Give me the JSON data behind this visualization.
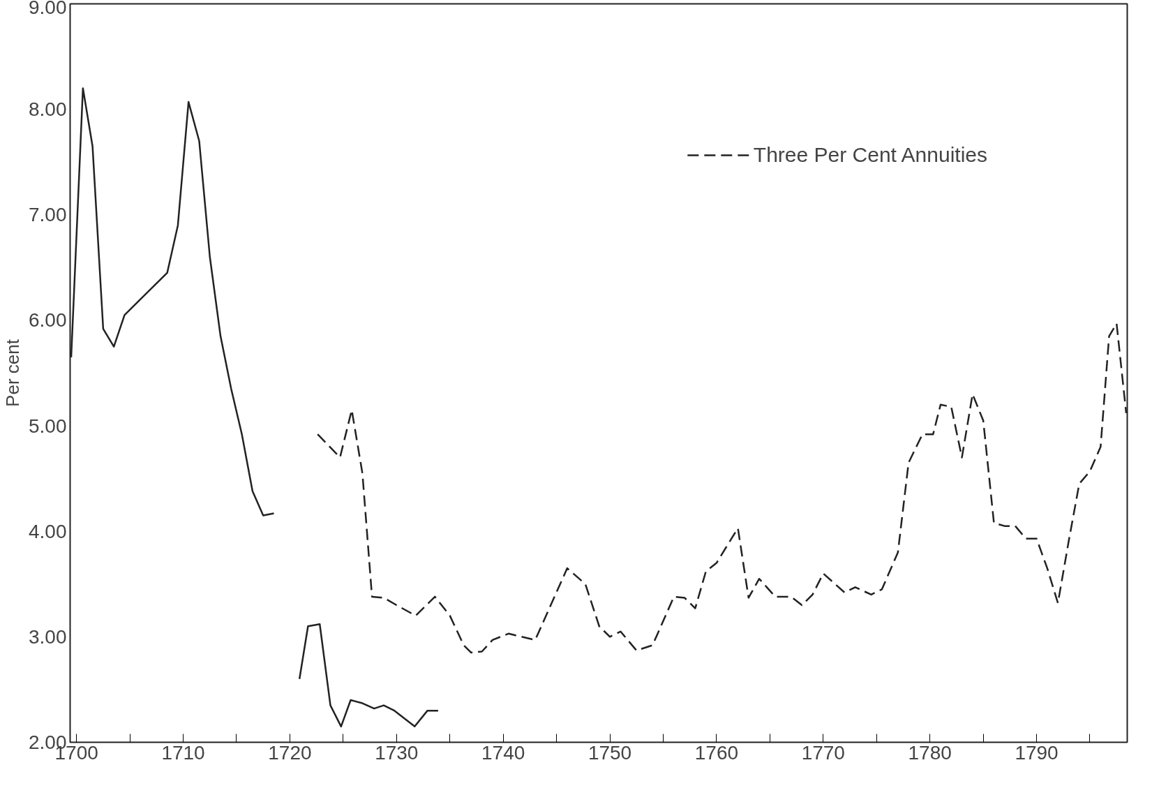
{
  "chart_data": {
    "type": "line",
    "ylabel": "Per cent",
    "xlim": [
      1699.4,
      1798.5
    ],
    "ylim": [
      2,
      9
    ],
    "xticks": [
      1700,
      {
        "value": 1705,
        "label": null
      },
      1710,
      {
        "value": 1715,
        "label": null
      },
      1720,
      {
        "value": 1725,
        "label": null
      },
      1730,
      {
        "value": 1735,
        "label": null
      },
      1740,
      {
        "value": 1745,
        "label": null
      },
      1750,
      {
        "value": 1755,
        "label": null
      },
      1760,
      {
        "value": 1765,
        "label": null
      },
      1770,
      {
        "value": 1775,
        "label": null
      },
      1780,
      {
        "value": 1785,
        "label": null
      },
      1790,
      {
        "value": 1795,
        "label": null
      }
    ],
    "yticks": [
      {
        "value": 2,
        "label": "2.00"
      },
      {
        "value": 3,
        "label": "3.00"
      },
      {
        "value": 4,
        "label": "4.00"
      },
      {
        "value": 5,
        "label": "5.00"
      },
      {
        "value": 6,
        "label": "6.00"
      },
      {
        "value": 7,
        "label": "7.00"
      },
      {
        "value": 8,
        "label": "8.00"
      },
      {
        "value": 9,
        "label": "9.00"
      }
    ],
    "grid": false,
    "legend": "top right",
    "series": [
      {
        "color": "#222222",
        "line_style": "solid",
        "x": [
          1699.5,
          1700.6,
          1701.5,
          1702.5,
          1703.5,
          1704.5,
          1706,
          1708.5,
          1709.5,
          1710.5,
          1711.5,
          1712.5,
          1713.5,
          1714.5,
          1715.5,
          1716.5,
          1717.5,
          1718.5,
          1720,
          1720.9,
          1721.7,
          1722.8,
          1723.8,
          1724.8,
          1725.7,
          1726.8,
          1727.9,
          1728.8,
          1729.8,
          1731.7,
          1732.9,
          1733.9
        ],
        "values": [
          5.65,
          8.2,
          7.65,
          5.92,
          5.75,
          6.05,
          6.2,
          6.45,
          6.9,
          8.07,
          7.7,
          6.6,
          5.85,
          5.35,
          4.92,
          4.38,
          4.15,
          4.17,
          null,
          2.6,
          3.1,
          3.12,
          2.35,
          2.15,
          2.4,
          2.37,
          2.32,
          2.35,
          2.3,
          2.15,
          2.3,
          2.3
        ]
      },
      {
        "name": "Three Per Cent Annuities",
        "color": "#222222",
        "line_style": "dashed",
        "x": [
          1722.6,
          1724.7,
          1725.8,
          1726.8,
          1727.7,
          1728.8,
          1730,
          1731.8,
          1733.6,
          1735,
          1736.3,
          1737,
          1738,
          1739,
          1740.5,
          1743,
          1746,
          1747.7,
          1749,
          1750,
          1751,
          1752.5,
          1754,
          1756,
          1757,
          1758,
          1759,
          1760,
          1762,
          1763,
          1764,
          1765.5,
          1767,
          1768,
          1769,
          1770,
          1772,
          1773,
          1774.5,
          1775.5,
          1777,
          1778,
          1779.3,
          1780.3,
          1781,
          1782,
          1783,
          1784,
          1785,
          1786,
          1787,
          1788,
          1789,
          1790,
          1791,
          1792,
          1793,
          1794,
          1795,
          1796,
          1796.8,
          1797.5,
          1798.4
        ],
        "values": [
          4.92,
          4.7,
          5.15,
          4.55,
          3.38,
          3.37,
          3.3,
          3.2,
          3.38,
          3.2,
          2.92,
          2.85,
          2.86,
          2.97,
          3.03,
          2.97,
          3.65,
          3.5,
          3.1,
          3.0,
          3.05,
          2.87,
          2.92,
          3.38,
          3.37,
          3.27,
          3.62,
          3.7,
          4.03,
          3.37,
          3.55,
          3.38,
          3.38,
          3.3,
          3.4,
          3.6,
          3.42,
          3.47,
          3.4,
          3.45,
          3.8,
          4.65,
          4.92,
          4.92,
          5.2,
          5.18,
          4.7,
          5.3,
          5.05,
          4.08,
          4.05,
          4.05,
          3.93,
          3.93,
          3.65,
          3.32,
          3.9,
          4.45,
          4.57,
          4.8,
          5.85,
          5.97,
          5.12
        ]
      }
    ]
  }
}
